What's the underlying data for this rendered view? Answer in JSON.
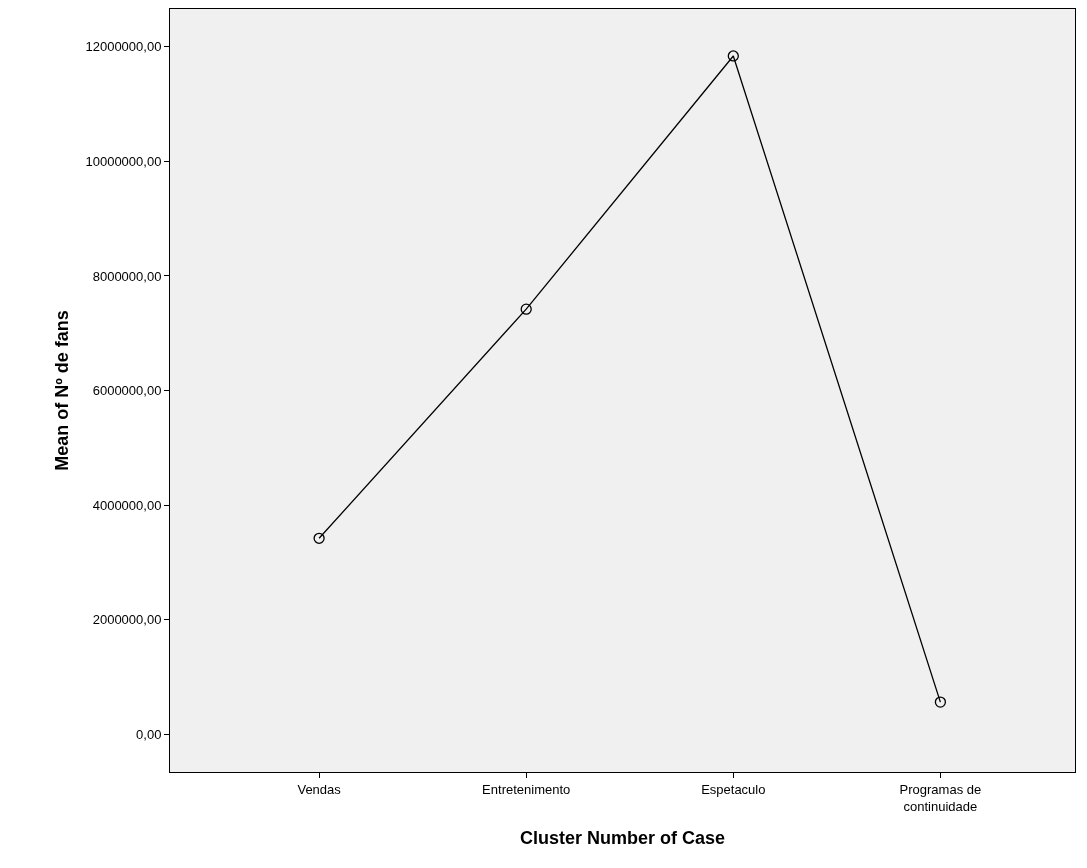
{
  "chart_data": {
    "type": "line",
    "xlabel": "Cluster Number of Case",
    "ylabel": "Mean of Nº de fans",
    "categories": [
      "Vendas",
      "Entretenimento",
      "Espetaculo",
      "Programas de\ncontinuidade"
    ],
    "series": [
      {
        "color": "#000000",
        "values": [
          3420000,
          7420000,
          11840000,
          560000
        ]
      }
    ],
    "ylim": [
      -660000,
      12660000
    ],
    "yticks": [
      {
        "value": 0,
        "label": "0,00"
      },
      {
        "value": 2000000,
        "label": "2000000,00"
      },
      {
        "value": 4000000,
        "label": "4000000,00"
      },
      {
        "value": 6000000,
        "label": "6000000,00"
      },
      {
        "value": 8000000,
        "label": "8000000,00"
      },
      {
        "value": 10000000,
        "label": "10000000,00"
      },
      {
        "value": 12000000,
        "label": "12000000,00"
      }
    ],
    "grid": false,
    "marker": "circle",
    "line_style": "solid"
  }
}
